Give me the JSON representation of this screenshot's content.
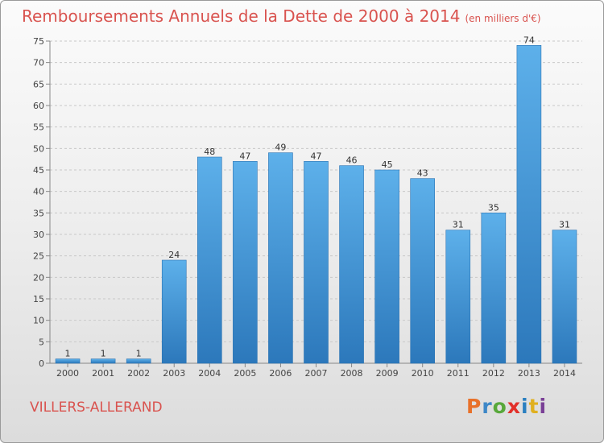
{
  "header": {
    "title": "Remboursements Annuels de la Dette de 2000 à 2014",
    "subtitle": "(en milliers d'€)"
  },
  "footer": {
    "commune": "VILLERS-ALLERAND",
    "brand": "Proxiti"
  },
  "chart_data": {
    "type": "bar",
    "title": "Remboursements Annuels de la Dette de 2000 à 2014",
    "subtitle": "(en milliers d'€)",
    "xlabel": "",
    "ylabel": "",
    "categories": [
      "2000",
      "2001",
      "2002",
      "2003",
      "2004",
      "2005",
      "2006",
      "2007",
      "2008",
      "2009",
      "2010",
      "2011",
      "2012",
      "2013",
      "2014"
    ],
    "values": [
      1,
      1,
      1,
      24,
      48,
      47,
      49,
      47,
      46,
      45,
      43,
      31,
      35,
      74,
      31
    ],
    "data_labels": [
      "1",
      "1",
      "1",
      "24",
      "48",
      "47",
      "49",
      "47",
      "46",
      "45",
      "43",
      "31",
      "35",
      "74",
      "31"
    ],
    "ylim": [
      0,
      75
    ],
    "yticks": [
      0,
      5,
      10,
      15,
      20,
      25,
      30,
      35,
      40,
      45,
      50,
      55,
      60,
      65,
      70,
      75
    ],
    "grid": true,
    "legend": "none",
    "colors": {
      "bar_light": "#5aaae6",
      "bar_dark": "#2f7dc0",
      "title": "#d9534f"
    }
  }
}
